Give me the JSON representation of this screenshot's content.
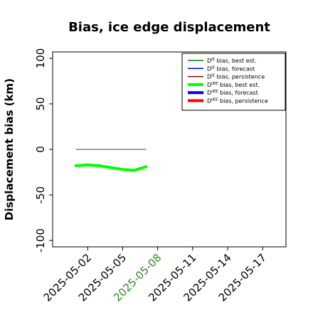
{
  "colors": {
    "series": [
      "#008000",
      "#0000ff",
      "#8b0000",
      "#00ff00",
      "#0000ff",
      "#ff0000"
    ],
    "zero_line": "#808080",
    "highlight_tick": "#2e8b20",
    "axis": "#000000"
  },
  "chart_data": {
    "type": "line",
    "title": "Bias, ice edge displacement",
    "xlabel": "",
    "ylabel": "Displacement bias (km)",
    "xlim": [
      "2025-04-29",
      "2025-05-19"
    ],
    "ylim": [
      -107,
      107
    ],
    "yticks": [
      100,
      50,
      0,
      -50,
      -100
    ],
    "ytick_labels": [
      "100",
      "50",
      "0",
      "-50",
      "-100"
    ],
    "xticks": [
      "2025-05-02",
      "2025-05-05",
      "2025-05-08",
      "2025-05-11",
      "2025-05-14",
      "2025-05-17"
    ],
    "highlight_xtick": "2025-05-08",
    "grid": false,
    "legend_position": "top-right",
    "legend": [
      {
        "base": "D",
        "sup": "IE",
        "rest": " bias, best est."
      },
      {
        "base": "D",
        "sup": "IE",
        "rest": " bias, forecast"
      },
      {
        "base": "D",
        "sup": "IE",
        "rest": " bias, persistence"
      },
      {
        "base": "D",
        "sup": "IIEE",
        "rest": " bias, best est."
      },
      {
        "base": "D",
        "sup": "IIEE",
        "rest": " bias, forecast"
      },
      {
        "base": "D",
        "sup": "IIEE",
        "rest": " bias, persistence"
      }
    ],
    "series": [
      {
        "name": "D^IE bias, best est.",
        "x": [],
        "y": []
      },
      {
        "name": "D^IE bias, forecast",
        "x": [],
        "y": []
      },
      {
        "name": "D^IE bias, persistence",
        "x": [],
        "y": []
      },
      {
        "name": "D^IIEE bias, best est.",
        "x": [
          "2025-05-01",
          "2025-05-02",
          "2025-05-03",
          "2025-05-04",
          "2025-05-05",
          "2025-05-06",
          "2025-05-07"
        ],
        "y": [
          -18,
          -17,
          -18,
          -20,
          -22,
          -23,
          -19
        ]
      },
      {
        "name": "D^IIEE bias, forecast",
        "x": [],
        "y": []
      },
      {
        "name": "D^IIEE bias, persistence",
        "x": [],
        "y": []
      }
    ],
    "zero_line": {
      "x": [
        "2025-05-01",
        "2025-05-07"
      ],
      "y": 0
    }
  }
}
